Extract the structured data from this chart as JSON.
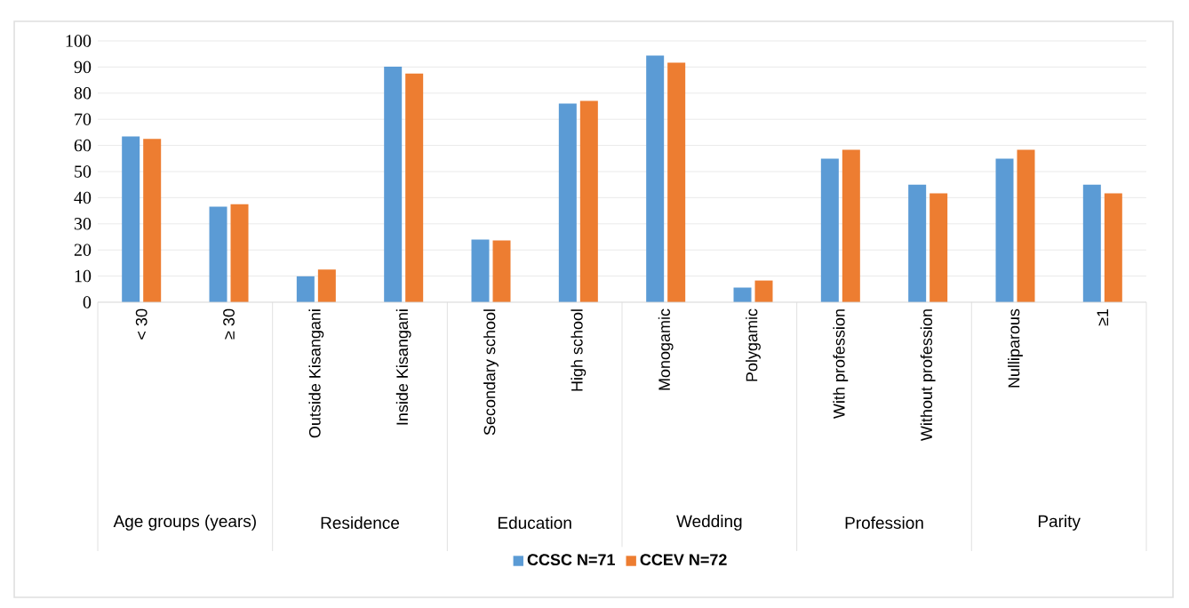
{
  "chart_data": {
    "type": "bar",
    "categories": [
      "< 30",
      "≥ 30",
      "Outside Kisangani",
      "Inside Kisangani",
      "Secondary school",
      "High school",
      "Monogamic",
      "Polygamic",
      "With profession",
      "Without profession",
      "Nulliparous",
      "≥1"
    ],
    "annotations": [
      "Age groups (years)",
      "Residence",
      "Education",
      "Wedding",
      "Profession",
      "Parity"
    ],
    "series": [
      {
        "name": "CCSC N=71",
        "color": "#5b9bd5",
        "values": [
          63.4,
          36.6,
          9.9,
          90.1,
          24,
          76,
          94.4,
          5.6,
          54.9,
          45,
          54.9,
          45
        ]
      },
      {
        "name": "CCEV N=72",
        "color": "#ed7d31",
        "values": [
          62.5,
          37.5,
          12.5,
          87.5,
          23.6,
          77,
          91.7,
          8.3,
          58.3,
          41.7,
          58.3,
          41.7
        ]
      }
    ],
    "ylim": [
      0,
      100
    ],
    "yticks": [
      0,
      10,
      20,
      30,
      40,
      50,
      60,
      70,
      80,
      90,
      100
    ],
    "grid": "y",
    "legend": "bottom"
  }
}
